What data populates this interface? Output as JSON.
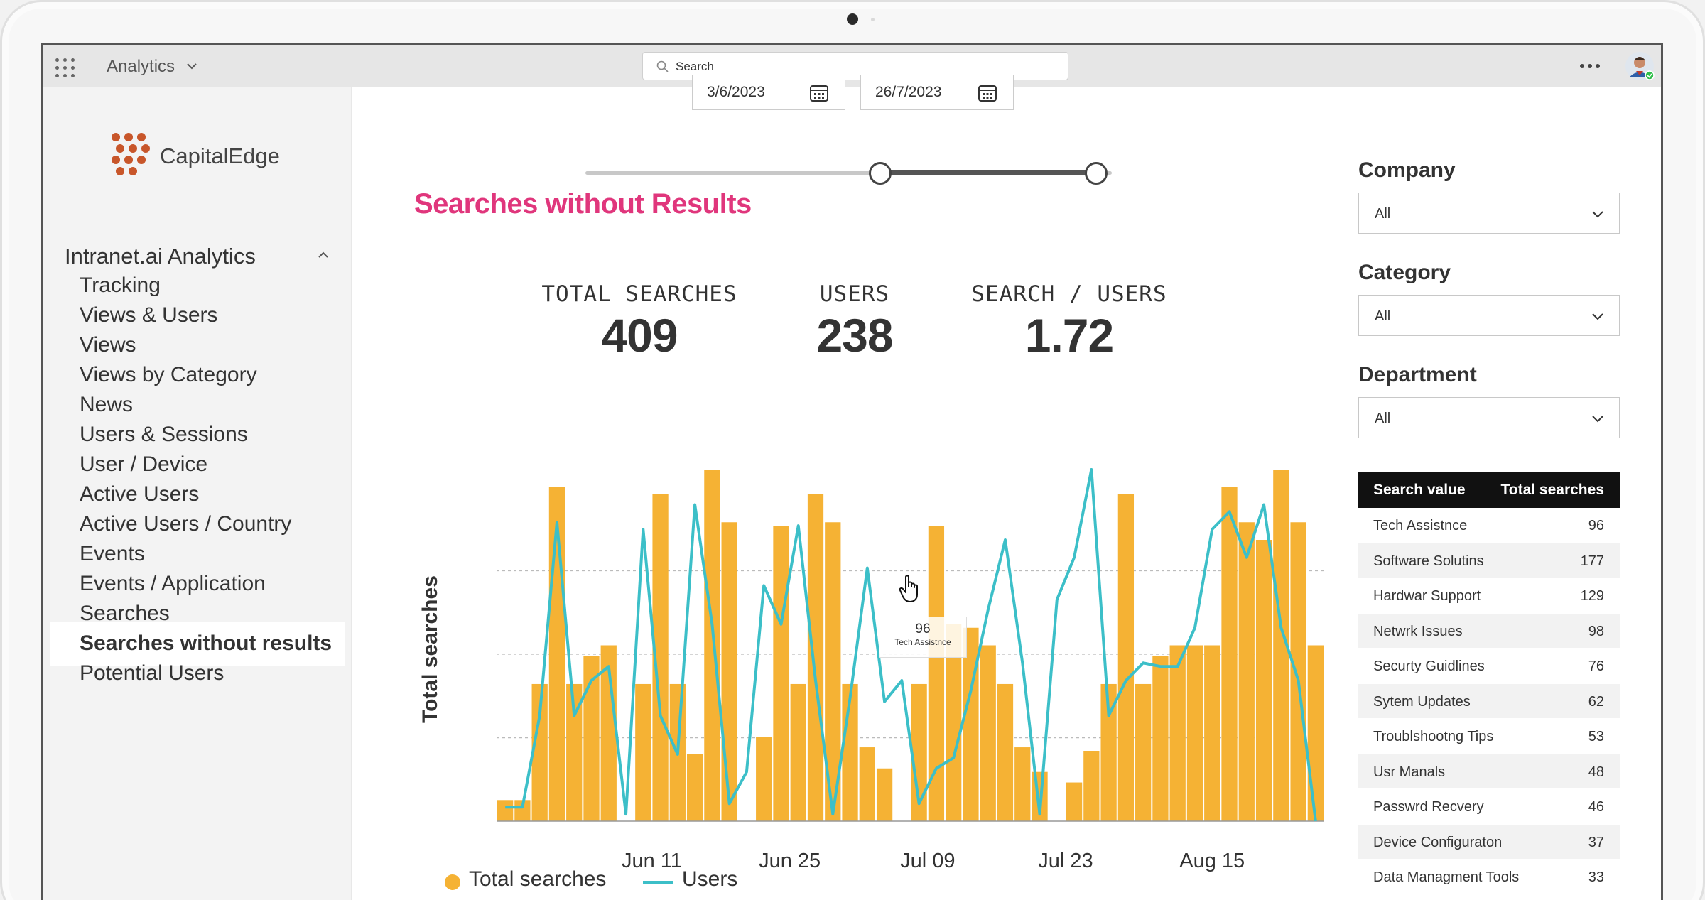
{
  "topbar": {
    "app_title": "Analytics",
    "search_placeholder": "Search"
  },
  "brand": {
    "name": "CapitalEdge"
  },
  "sidebar": {
    "section_label": "Intranet.ai Analytics",
    "items": [
      {
        "label": "Tracking"
      },
      {
        "label": "Views & Users"
      },
      {
        "label": "Views"
      },
      {
        "label": "Views by Category"
      },
      {
        "label": "News"
      },
      {
        "label": "Users & Sessions"
      },
      {
        "label": "User / Device"
      },
      {
        "label": "Active Users"
      },
      {
        "label": "Active Users / Country"
      },
      {
        "label": "Events"
      },
      {
        "label": "Events / Application"
      },
      {
        "label": "Searches"
      },
      {
        "label": "Searches without results",
        "active": true
      },
      {
        "label": "Potential Users"
      }
    ]
  },
  "date_range": {
    "start": "3/6/2023",
    "end": "26/7/2023",
    "range_start": 0.56,
    "range_end": 0.97
  },
  "page": {
    "title": "Searches without Results"
  },
  "kpis": [
    {
      "label": "TOTAL SEARCHES",
      "value": "409"
    },
    {
      "label": "USERS",
      "value": "238"
    },
    {
      "label": "SEARCH / USERS",
      "value": "1.72"
    }
  ],
  "chart_data": {
    "type": "bar",
    "ylabel": "Total searches",
    "xtick_labels": [
      "Jun 11",
      "Jun 25",
      "Jul 09",
      "Jul 23",
      "Aug 15"
    ],
    "xtick_positions": [
      9,
      17,
      25,
      33,
      41.5
    ],
    "ylim": [
      0,
      100
    ],
    "grid": "dashed horizontal",
    "series": [
      {
        "name": "Total searches",
        "kind": "bar",
        "color": "#f5b234",
        "values": [
          6,
          6,
          39,
          95,
          39,
          47,
          50,
          0,
          39,
          93,
          39,
          19,
          100,
          85,
          0,
          24,
          84,
          39,
          93,
          85,
          39,
          21,
          15,
          0,
          39,
          84,
          56,
          55,
          50,
          39,
          21,
          14,
          0,
          11,
          20,
          39,
          93,
          39,
          47,
          50,
          50,
          50,
          95,
          85,
          80,
          100,
          85,
          50
        ]
      },
      {
        "name": "Users",
        "kind": "line",
        "color": "#3cbfc8",
        "values": [
          4,
          4,
          30,
          85,
          30,
          40,
          44,
          2,
          83,
          30,
          19,
          90,
          56,
          5,
          14,
          67,
          56,
          84,
          40,
          2,
          35,
          72,
          34,
          40,
          5,
          15,
          18,
          37,
          60,
          80,
          45,
          2,
          63,
          75,
          100,
          30,
          40,
          45,
          44,
          44,
          55,
          83,
          88,
          75,
          90,
          55,
          40,
          0
        ]
      }
    ],
    "tooltip": {
      "value": "96",
      "label": "Tech Assistnce"
    }
  },
  "legend": [
    {
      "label": "Total searches"
    },
    {
      "label": "Users"
    }
  ],
  "filters": [
    {
      "label": "Company",
      "value": "All"
    },
    {
      "label": "Category",
      "value": "All"
    },
    {
      "label": "Department",
      "value": "All"
    }
  ],
  "table": {
    "headers": [
      "Search value",
      "Total searches"
    ],
    "rows": [
      [
        "Tech Assistnce",
        "96"
      ],
      [
        "Software Solutins",
        "177"
      ],
      [
        "Hardwar Support",
        "129"
      ],
      [
        "Netwrk Issues",
        "98"
      ],
      [
        "Securty Guidlines",
        "76"
      ],
      [
        "Sytem Updates",
        "62"
      ],
      [
        "Troublshootng Tips",
        "53"
      ],
      [
        "Usr Manals",
        "48"
      ],
      [
        "Passwrd Recvery",
        "46"
      ],
      [
        "Device Configuraton",
        "37"
      ],
      [
        "Data Managment Tools",
        "33"
      ]
    ]
  },
  "colors": {
    "accent": "#e0367c",
    "bar": "#f5b234",
    "line": "#3cbfc8",
    "table_header": "#111111"
  }
}
